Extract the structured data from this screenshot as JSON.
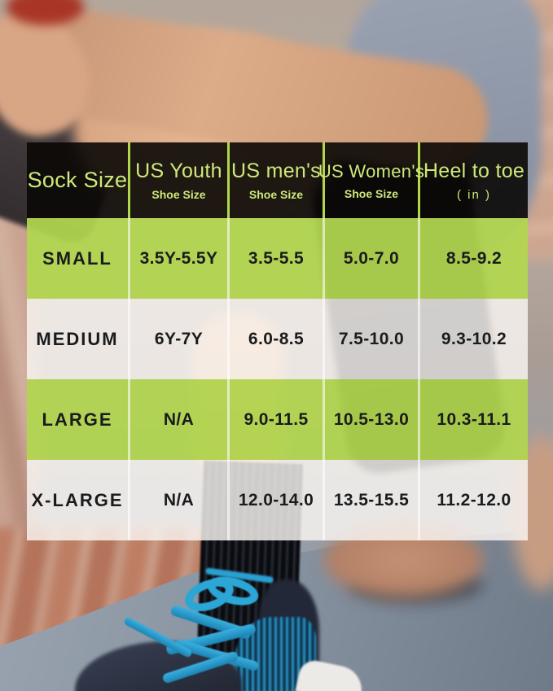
{
  "colors": {
    "row_green": "#b1d64f",
    "row_light": "#f4f1ec",
    "header_bg": "#0b0907",
    "header_text_green": "#cde97a",
    "header_divider_green": "#b1d74e",
    "body_text": "#1a1b1d",
    "sneaker_blue": "#2aa0d2",
    "sock_black": "#0e0f13"
  },
  "table": {
    "columns": [
      {
        "label": "Sock Size",
        "sublabel": ""
      },
      {
        "label": "US Youth",
        "sublabel": "Shoe Size"
      },
      {
        "label": "US men's",
        "sublabel": "Shoe Size"
      },
      {
        "label": "US Women's",
        "sublabel": "Shoe Size"
      },
      {
        "label": "Heel to toe",
        "sublabel": "( in )"
      }
    ],
    "rows": [
      {
        "cells": [
          "SMALL",
          "3.5Y-5.5Y",
          "3.5-5.5",
          "5.0-7.0",
          "8.5-9.2"
        ]
      },
      {
        "cells": [
          "MEDIUM",
          "6Y-7Y",
          "6.0-8.5",
          "7.5-10.0",
          "9.3-10.2"
        ]
      },
      {
        "cells": [
          "LARGE",
          "N/A",
          "9.0-11.5",
          "10.5-13.0",
          "10.3-11.1"
        ]
      },
      {
        "cells": [
          "X-LARGE",
          "N/A",
          "12.0-14.0",
          "13.5-15.5",
          "11.2-12.0"
        ]
      }
    ]
  },
  "chart_data": {
    "type": "table",
    "title": "Sock size chart",
    "columns": [
      "Sock Size",
      "US Youth Shoe Size",
      "US men's Shoe Size",
      "US Women's Shoe Size",
      "Heel to toe (in)"
    ],
    "rows": [
      [
        "SMALL",
        "3.5Y-5.5Y",
        "3.5-5.5",
        "5.0-7.0",
        "8.5-9.2"
      ],
      [
        "MEDIUM",
        "6Y-7Y",
        "6.0-8.5",
        "7.5-10.0",
        "9.3-10.2"
      ],
      [
        "LARGE",
        "N/A",
        "9.0-11.5",
        "10.5-13.0",
        "10.3-11.1"
      ],
      [
        "X-LARGE",
        "N/A",
        "12.0-14.0",
        "13.5-15.5",
        "11.2-12.0"
      ]
    ]
  }
}
